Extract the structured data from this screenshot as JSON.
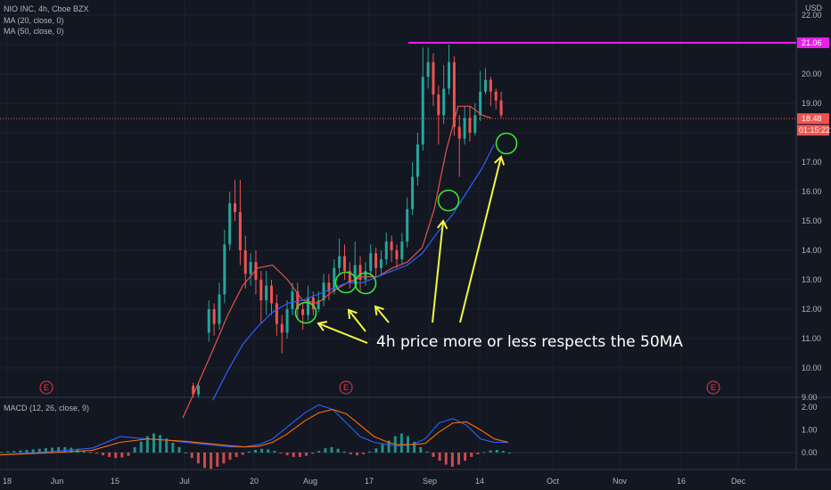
{
  "legend": {
    "symbol": "NIO INC, 4h, Cboe BZX",
    "ma20": "MA (20, close, 0)",
    "ma50": "MA (50, close, 0)",
    "macd": "MACD (12, 26, close, 9)"
  },
  "price_axis": {
    "currency": "USD",
    "ticks": [
      "22.00",
      "21.00",
      "20.00",
      "19.00",
      "18.00",
      "17.00",
      "16.00",
      "15.00",
      "14.00",
      "13.00",
      "12.00",
      "11.00",
      "10.00",
      "9.00"
    ],
    "hline_label": "21.06",
    "last_price_label": "18.48",
    "countdown_label": "01:15:22"
  },
  "macd_axis": {
    "ticks": [
      "2.00",
      "1.00",
      "0.00"
    ]
  },
  "time_axis": {
    "ticks": [
      "18",
      "Jun",
      "15",
      "Jul",
      "20",
      "Aug",
      "17",
      "Sep",
      "14",
      "Oct",
      "Nov",
      "16",
      "Dec"
    ]
  },
  "earnings_markers": [
    "E",
    "E",
    "E"
  ],
  "annotation": "4h price more or less respects the 50MA",
  "colors": {
    "background": "#131722",
    "up": "#26a69a",
    "down": "#ef5350",
    "ma20": "#e2534a",
    "ma50": "#2962ff",
    "hline": "#e91ee9",
    "arrows": "#f5f542",
    "circles": "#39e639",
    "macd_line": "#2962ff",
    "signal_line": "#ff6d00"
  },
  "chart_data": {
    "type": "candlestick",
    "title": "NIO INC, 4h, Cboe BZX",
    "timeframe": "4h",
    "price_range": [
      9,
      22.3
    ],
    "horizontal_level": 21.06,
    "last_price": 18.48,
    "ma20_path": [
      [
        0.0,
        8.3
      ],
      [
        0.4,
        9.2
      ],
      [
        1.0,
        10.6
      ],
      [
        1.5,
        11.8
      ],
      [
        2.0,
        12.8
      ],
      [
        2.5,
        13.4
      ],
      [
        3.0,
        13.5
      ],
      [
        3.5,
        13.0
      ],
      [
        4.0,
        12.3
      ],
      [
        4.5,
        12.2
      ],
      [
        5.0,
        12.6
      ],
      [
        5.5,
        12.9
      ],
      [
        6.0,
        13.1
      ],
      [
        6.5,
        13.1
      ],
      [
        7.0,
        13.4
      ],
      [
        7.5,
        13.6
      ],
      [
        8.0,
        14.1
      ],
      [
        8.4,
        15.4
      ],
      [
        8.8,
        17.4
      ],
      [
        9.2,
        18.9
      ],
      [
        9.6,
        18.9
      ],
      [
        10.0,
        18.6
      ],
      [
        10.3,
        18.5
      ]
    ],
    "ma50_path": [
      [
        1.0,
        8.9
      ],
      [
        1.5,
        9.9
      ],
      [
        2.0,
        10.8
      ],
      [
        2.5,
        11.4
      ],
      [
        3.0,
        11.9
      ],
      [
        3.5,
        12.2
      ],
      [
        4.0,
        12.3
      ],
      [
        4.5,
        12.5
      ],
      [
        5.0,
        12.7
      ],
      [
        5.5,
        12.9
      ],
      [
        6.0,
        12.9
      ],
      [
        6.5,
        13.1
      ],
      [
        7.0,
        13.3
      ],
      [
        7.5,
        13.5
      ],
      [
        8.0,
        13.9
      ],
      [
        8.5,
        14.6
      ],
      [
        9.0,
        15.2
      ],
      [
        9.5,
        16.0
      ],
      [
        10.0,
        16.8
      ],
      [
        10.4,
        17.6
      ]
    ],
    "candles": [
      [
        0.2,
        9.4,
        9.1,
        9.5,
        9.0
      ],
      [
        0.3,
        9.1,
        9.4,
        9.5,
        9.0
      ],
      [
        0.5,
        11.2,
        12.0,
        12.3,
        10.9
      ],
      [
        0.6,
        12.0,
        11.5,
        12.2,
        11.1
      ],
      [
        0.7,
        11.5,
        12.5,
        12.9,
        11.3
      ],
      [
        0.8,
        12.5,
        14.2,
        14.7,
        12.2
      ],
      [
        0.9,
        14.2,
        15.6,
        16.0,
        14.0
      ],
      [
        1.0,
        15.6,
        15.3,
        16.4,
        15.0
      ],
      [
        1.1,
        15.3,
        14.0,
        16.4,
        13.5
      ],
      [
        1.2,
        14.0,
        13.2,
        14.5,
        12.7
      ],
      [
        1.3,
        13.2,
        13.6,
        13.9,
        12.8
      ],
      [
        1.4,
        13.6,
        13.0,
        14.0,
        12.5
      ],
      [
        1.5,
        13.0,
        12.3,
        13.3,
        11.5
      ],
      [
        1.6,
        12.3,
        12.8,
        13.3,
        11.8
      ],
      [
        1.7,
        12.8,
        12.2,
        13.0,
        11.8
      ],
      [
        1.8,
        12.2,
        11.5,
        12.5,
        11.1
      ],
      [
        1.9,
        11.5,
        11.2,
        11.8,
        10.5
      ],
      [
        2.0,
        11.2,
        12.0,
        12.3,
        11.0
      ],
      [
        2.1,
        12.0,
        12.6,
        12.9,
        11.8
      ],
      [
        2.2,
        12.6,
        12.0,
        12.9,
        11.7
      ],
      [
        2.3,
        12.0,
        11.8,
        12.2,
        11.3
      ],
      [
        2.4,
        11.8,
        12.4,
        12.8,
        11.6
      ],
      [
        2.5,
        12.4,
        12.0,
        12.6,
        11.8
      ],
      [
        2.6,
        12.0,
        12.3,
        12.6,
        11.9
      ],
      [
        2.7,
        12.3,
        12.9,
        13.2,
        12.1
      ],
      [
        2.8,
        12.9,
        12.6,
        13.2,
        12.3
      ],
      [
        2.9,
        12.6,
        13.4,
        13.7,
        12.5
      ],
      [
        3.0,
        13.4,
        13.8,
        14.4,
        13.2
      ],
      [
        3.1,
        13.8,
        13.3,
        14.2,
        13.0
      ],
      [
        3.2,
        13.3,
        12.9,
        13.6,
        12.7
      ],
      [
        3.3,
        12.9,
        13.5,
        14.3,
        12.8
      ],
      [
        3.4,
        13.5,
        13.0,
        13.8,
        12.6
      ],
      [
        3.5,
        13.0,
        13.3,
        13.6,
        12.8
      ],
      [
        3.6,
        13.3,
        13.9,
        14.2,
        13.1
      ],
      [
        3.7,
        13.9,
        13.4,
        14.1,
        13.1
      ],
      [
        3.8,
        13.4,
        13.7,
        14.0,
        13.2
      ],
      [
        3.9,
        13.7,
        14.3,
        14.6,
        13.5
      ],
      [
        4.0,
        14.3,
        14.0,
        14.5,
        13.6
      ],
      [
        4.1,
        14.0,
        13.7,
        14.2,
        13.4
      ],
      [
        4.2,
        13.7,
        14.3,
        14.6,
        13.5
      ],
      [
        4.3,
        14.3,
        15.4,
        15.8,
        14.1
      ],
      [
        4.4,
        15.4,
        16.5,
        17.0,
        15.2
      ],
      [
        4.5,
        16.5,
        17.6,
        18.0,
        16.2
      ],
      [
        4.6,
        17.6,
        19.9,
        20.9,
        17.4
      ],
      [
        4.7,
        19.9,
        20.4,
        20.9,
        19.5
      ],
      [
        4.8,
        20.4,
        19.3,
        20.7,
        18.9
      ],
      [
        4.9,
        19.3,
        18.6,
        19.6,
        17.6
      ],
      [
        5.0,
        18.6,
        19.5,
        20.3,
        18.3
      ],
      [
        5.1,
        19.5,
        20.4,
        21.0,
        19.3
      ],
      [
        5.2,
        20.4,
        18.2,
        20.6,
        17.9
      ],
      [
        5.3,
        18.2,
        17.8,
        18.6,
        16.5
      ],
      [
        5.4,
        17.8,
        18.5,
        18.9,
        17.6
      ],
      [
        5.5,
        18.5,
        18.0,
        18.9,
        17.7
      ],
      [
        5.6,
        18.0,
        18.6,
        19.0,
        17.9
      ],
      [
        5.7,
        18.6,
        19.4,
        20.1,
        18.4
      ],
      [
        5.8,
        19.4,
        19.8,
        20.2,
        19.3
      ],
      [
        5.9,
        19.8,
        19.4,
        19.9,
        18.9
      ],
      [
        6.0,
        19.4,
        19.1,
        19.5,
        18.8
      ],
      [
        6.1,
        19.1,
        18.6,
        19.4,
        18.5
      ]
    ],
    "candle_fields": [
      "t",
      "open",
      "close",
      "high",
      "low"
    ],
    "macd_range": [
      -0.45,
      2.35
    ],
    "macd_line": [
      [
        0.0,
        -0.1
      ],
      [
        1.2,
        0.05
      ],
      [
        2.0,
        0.2
      ],
      [
        2.6,
        0.7
      ],
      [
        3.2,
        0.6
      ],
      [
        3.6,
        0.55
      ],
      [
        4.0,
        0.45
      ],
      [
        4.5,
        0.35
      ],
      [
        5.0,
        0.25
      ],
      [
        5.3,
        0.25
      ],
      [
        5.6,
        0.35
      ],
      [
        5.9,
        0.6
      ],
      [
        6.2,
        1.1
      ],
      [
        6.6,
        1.75
      ],
      [
        6.9,
        2.1
      ],
      [
        7.2,
        1.9
      ],
      [
        7.5,
        1.3
      ],
      [
        7.8,
        0.7
      ],
      [
        8.1,
        0.45
      ],
      [
        8.4,
        0.35
      ],
      [
        8.6,
        0.3
      ],
      [
        8.9,
        0.35
      ],
      [
        9.2,
        0.6
      ],
      [
        9.5,
        1.3
      ],
      [
        9.8,
        1.5
      ],
      [
        10.1,
        1.2
      ],
      [
        10.4,
        0.6
      ],
      [
        10.7,
        0.45
      ],
      [
        11.0,
        0.45
      ]
    ],
    "signal_line": [
      [
        0.0,
        -0.1
      ],
      [
        1.2,
        0.0
      ],
      [
        2.0,
        0.1
      ],
      [
        2.6,
        0.45
      ],
      [
        3.2,
        0.6
      ],
      [
        3.6,
        0.55
      ],
      [
        4.0,
        0.5
      ],
      [
        4.5,
        0.4
      ],
      [
        5.0,
        0.3
      ],
      [
        5.3,
        0.25
      ],
      [
        5.6,
        0.28
      ],
      [
        5.9,
        0.45
      ],
      [
        6.2,
        0.8
      ],
      [
        6.6,
        1.4
      ],
      [
        6.9,
        1.75
      ],
      [
        7.2,
        1.9
      ],
      [
        7.5,
        1.7
      ],
      [
        7.8,
        1.2
      ],
      [
        8.1,
        0.7
      ],
      [
        8.4,
        0.45
      ],
      [
        8.6,
        0.35
      ],
      [
        8.9,
        0.35
      ],
      [
        9.2,
        0.4
      ],
      [
        9.5,
        0.9
      ],
      [
        9.8,
        1.3
      ],
      [
        10.1,
        1.35
      ],
      [
        10.4,
        1.0
      ],
      [
        10.7,
        0.6
      ],
      [
        11.0,
        0.45
      ]
    ],
    "histogram": [
      [
        0.0,
        0.01
      ],
      [
        0.1,
        0.02
      ],
      [
        0.2,
        0.03
      ],
      [
        0.3,
        0.04
      ],
      [
        0.4,
        0.05
      ],
      [
        0.5,
        0.06
      ],
      [
        0.6,
        0.07
      ],
      [
        0.7,
        0.08
      ],
      [
        0.8,
        0.09
      ],
      [
        0.9,
        0.1
      ],
      [
        1.0,
        0.1
      ],
      [
        1.1,
        0.09
      ],
      [
        1.2,
        0.07
      ],
      [
        1.3,
        0.04
      ],
      [
        1.4,
        0.01
      ],
      [
        1.5,
        -0.02
      ],
      [
        1.6,
        -0.05
      ],
      [
        1.7,
        -0.08
      ],
      [
        1.8,
        -0.1
      ],
      [
        1.9,
        -0.09
      ],
      [
        2.0,
        -0.06
      ],
      [
        2.1,
        0.1
      ],
      [
        2.2,
        0.2
      ],
      [
        2.3,
        0.3
      ],
      [
        2.4,
        0.35
      ],
      [
        2.5,
        0.32
      ],
      [
        2.6,
        0.26
      ],
      [
        2.7,
        0.18
      ],
      [
        2.8,
        0.1
      ],
      [
        2.9,
        0.0
      ],
      [
        3.0,
        -0.1
      ],
      [
        3.1,
        -0.2
      ],
      [
        3.2,
        -0.28
      ],
      [
        3.3,
        -0.3
      ],
      [
        3.4,
        -0.26
      ],
      [
        3.5,
        -0.2
      ],
      [
        3.6,
        -0.13
      ],
      [
        3.7,
        -0.08
      ],
      [
        3.8,
        -0.04
      ],
      [
        3.9,
        0.02
      ],
      [
        4.0,
        0.05
      ],
      [
        4.1,
        0.07
      ],
      [
        4.2,
        0.06
      ],
      [
        4.3,
        0.03
      ],
      [
        4.4,
        -0.01
      ],
      [
        4.5,
        -0.05
      ],
      [
        4.6,
        -0.08
      ],
      [
        4.7,
        -0.08
      ],
      [
        4.8,
        -0.06
      ],
      [
        4.9,
        -0.02
      ],
      [
        5.0,
        0.03
      ],
      [
        5.1,
        0.08
      ],
      [
        5.2,
        0.1
      ],
      [
        5.3,
        0.07
      ],
      [
        5.4,
        0.02
      ],
      [
        5.5,
        -0.03
      ],
      [
        5.6,
        -0.05
      ],
      [
        5.7,
        -0.03
      ],
      [
        5.8,
        0.02
      ],
      [
        5.9,
        0.08
      ],
      [
        6.0,
        0.15
      ],
      [
        6.1,
        0.22
      ],
      [
        6.2,
        0.3
      ],
      [
        6.3,
        0.35
      ],
      [
        6.4,
        0.3
      ],
      [
        6.5,
        0.2
      ],
      [
        6.6,
        0.1
      ],
      [
        6.7,
        0.02
      ],
      [
        6.8,
        -0.08
      ],
      [
        6.9,
        -0.15
      ],
      [
        7.0,
        -0.22
      ],
      [
        7.1,
        -0.26
      ],
      [
        7.2,
        -0.22
      ],
      [
        7.3,
        -0.15
      ],
      [
        7.4,
        -0.08
      ],
      [
        7.5,
        -0.03
      ],
      [
        7.6,
        0.01
      ],
      [
        7.7,
        0.04
      ],
      [
        7.8,
        0.05
      ],
      [
        7.9,
        0.03
      ],
      [
        8.0,
        0.0
      ]
    ]
  }
}
